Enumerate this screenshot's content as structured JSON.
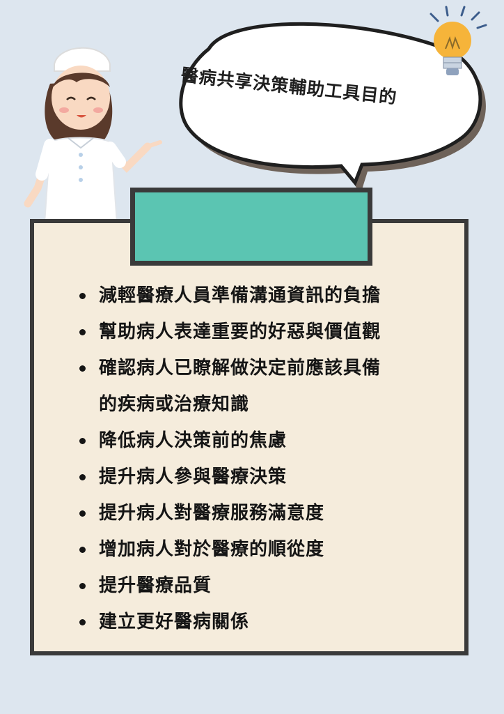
{
  "title": "醫病共享決策輔助工具目的",
  "header_box_text": "",
  "goals": [
    {
      "lines": [
        "減輕醫療人員準備溝通資訊的負擔"
      ]
    },
    {
      "lines": [
        "幫助病人表達重要的好惡與價值觀"
      ]
    },
    {
      "lines": [
        "確認病人已瞭解做決定前應該具備",
        "的疾病或治療知識"
      ]
    },
    {
      "lines": [
        "降低病人決策前的焦慮"
      ]
    },
    {
      "lines": [
        "提升病人參與醫療決策"
      ]
    },
    {
      "lines": [
        "提升病人對醫療服務滿意度"
      ]
    },
    {
      "lines": [
        "增加病人對於醫療的順從度"
      ]
    },
    {
      "lines": [
        "提升醫療品質"
      ]
    },
    {
      "lines": [
        "建立更好醫病關係"
      ]
    }
  ],
  "colors": {
    "background": "#dde6ef",
    "card": "#f5ecdc",
    "header_box": "#5bc5b2",
    "border": "#3a3a3a",
    "bubble_shadow": "#6e6259",
    "bulb": "#f6b43a"
  },
  "icons": [
    "nurse-illustration",
    "lightbulb-icon",
    "speech-bubble"
  ]
}
